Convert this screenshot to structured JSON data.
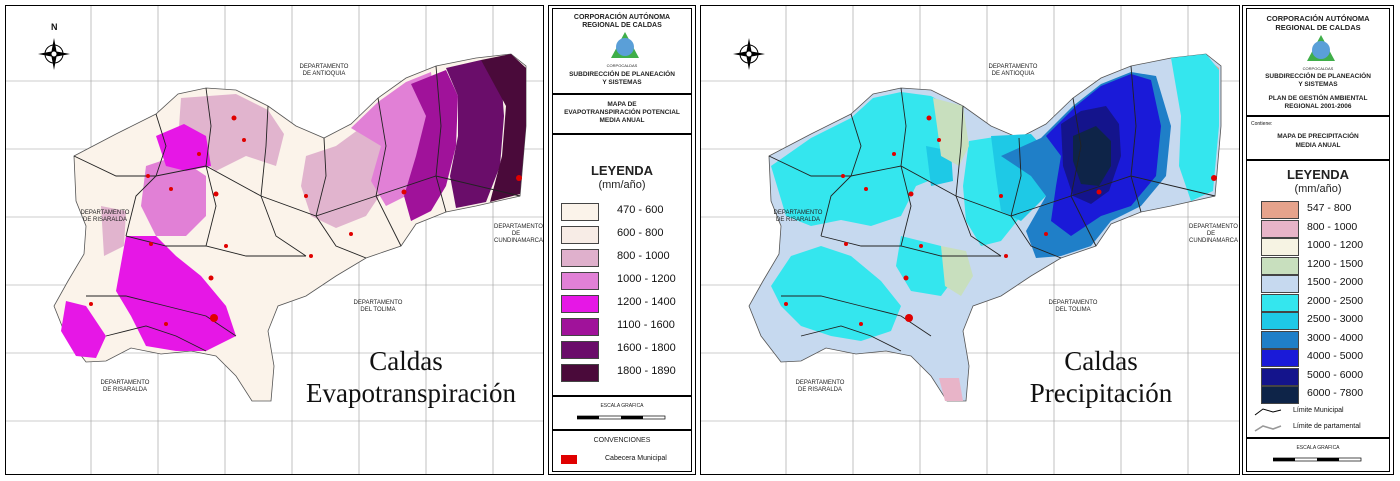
{
  "left_map": {
    "title_line1": "Caldas",
    "title_line2": "Evapotranspiración",
    "departments": {
      "antioquia": "DEPARTAMENTO DE ANTIOQUIA",
      "risaralda_n": "DEPARTAMENTO DE RISARALDA",
      "cundinamarca": "DEPARTAMENTO DE CUNDINAMARCA",
      "tolima": "DEPARTAMENTO DEL TOLIMA",
      "risaralda_s": "DEPARTAMENTO DE RISARALDA"
    },
    "north": "N"
  },
  "left_panel": {
    "org_line1": "CORPORACIÓN AUTÓNOMA",
    "org_line2": "REGIONAL DE CALDAS",
    "logo_text": "CORPOCALDAS",
    "sub_line1": "SUBDIRECCIÓN DE PLANEACIÓN",
    "sub_line2": "Y SISTEMAS",
    "map_title_1": "MAPA DE",
    "map_title_2": "EVAPOTRANSPIRACIÓN POTENCIAL",
    "map_title_3": "MEDIA ANUAL",
    "legend_title": "LEYENDA",
    "legend_unit": "(mm/año)",
    "legend": [
      {
        "label": "470 - 600",
        "color": "#fbf3ea"
      },
      {
        "label": "600 - 800",
        "color": "#f7ece6"
      },
      {
        "label": "800 - 1000",
        "color": "#dfb0cc"
      },
      {
        "label": "1000 - 1200",
        "color": "#e180d6"
      },
      {
        "label": "1200 - 1400",
        "color": "#e617e6"
      },
      {
        "label": "1100 - 1600",
        "color": "#a0129a"
      },
      {
        "label": "1600 - 1800",
        "color": "#6a0d6a"
      },
      {
        "label": "1800 - 1890",
        "color": "#4a0a3a"
      }
    ],
    "scale_title": "ESCALA GRAFICA",
    "conv_title": "CONVENCIONES",
    "conv_item": "Cabecera Municipal"
  },
  "right_map": {
    "title_line1": "Caldas",
    "title_line2": "Precipitación",
    "departments": {
      "antioquia": "DEPARTAMENTO DE ANTIOQUIA",
      "risaralda_n": "DEPARTAMENTO DE RISARALDA",
      "cundinamarca": "DEPARTAMENTO DE CUNDINAMARCA",
      "tolima": "DEPARTAMENTO DEL TOLIMA",
      "risaralda_s": "DEPARTAMENTO DE RISARALDA"
    }
  },
  "right_panel": {
    "org_line1": "CORPORACIÓN AUTÓNOMA",
    "org_line2": "REGIONAL DE CALDAS",
    "logo_text": "CORPOCALDAS",
    "sub_line1": "SUBDIRECCIÓN DE PLANEACIÓN",
    "sub_line2": "Y SISTEMAS",
    "plan_line1": "PLAN DE GESTIÓN AMBIENTAL",
    "plan_line2": "REGIONAL 2001-2006",
    "contains": "Contiene:",
    "map_title_1": "MAPA DE PRECIPITACIÓN",
    "map_title_2": "MEDIA ANUAL",
    "legend_title": "LEYENDA",
    "legend_unit": "(mm/año)",
    "legend": [
      {
        "label": "547 - 800",
        "color": "#e6a38c"
      },
      {
        "label": "800 - 1000",
        "color": "#e8b4c8"
      },
      {
        "label": "1000 - 1200",
        "color": "#f6f3e3"
      },
      {
        "label": "1200 - 1500",
        "color": "#c8dfbe"
      },
      {
        "label": "1500 - 2000",
        "color": "#c6d9ef"
      },
      {
        "label": "2000 - 2500",
        "color": "#34e6ee"
      },
      {
        "label": "2500 - 3000",
        "color": "#1ec9e6"
      },
      {
        "label": "3000 - 4000",
        "color": "#1f7fc8"
      },
      {
        "label": "4000 - 5000",
        "color": "#1a1ad8"
      },
      {
        "label": "5000 - 6000",
        "color": "#14148c"
      },
      {
        "label": "6000 - 7800",
        "color": "#0e2448"
      }
    ],
    "line1": "Límite Municipal",
    "line2": "Límite de partamental",
    "scale_title": "ESCALA GRAFICA"
  }
}
